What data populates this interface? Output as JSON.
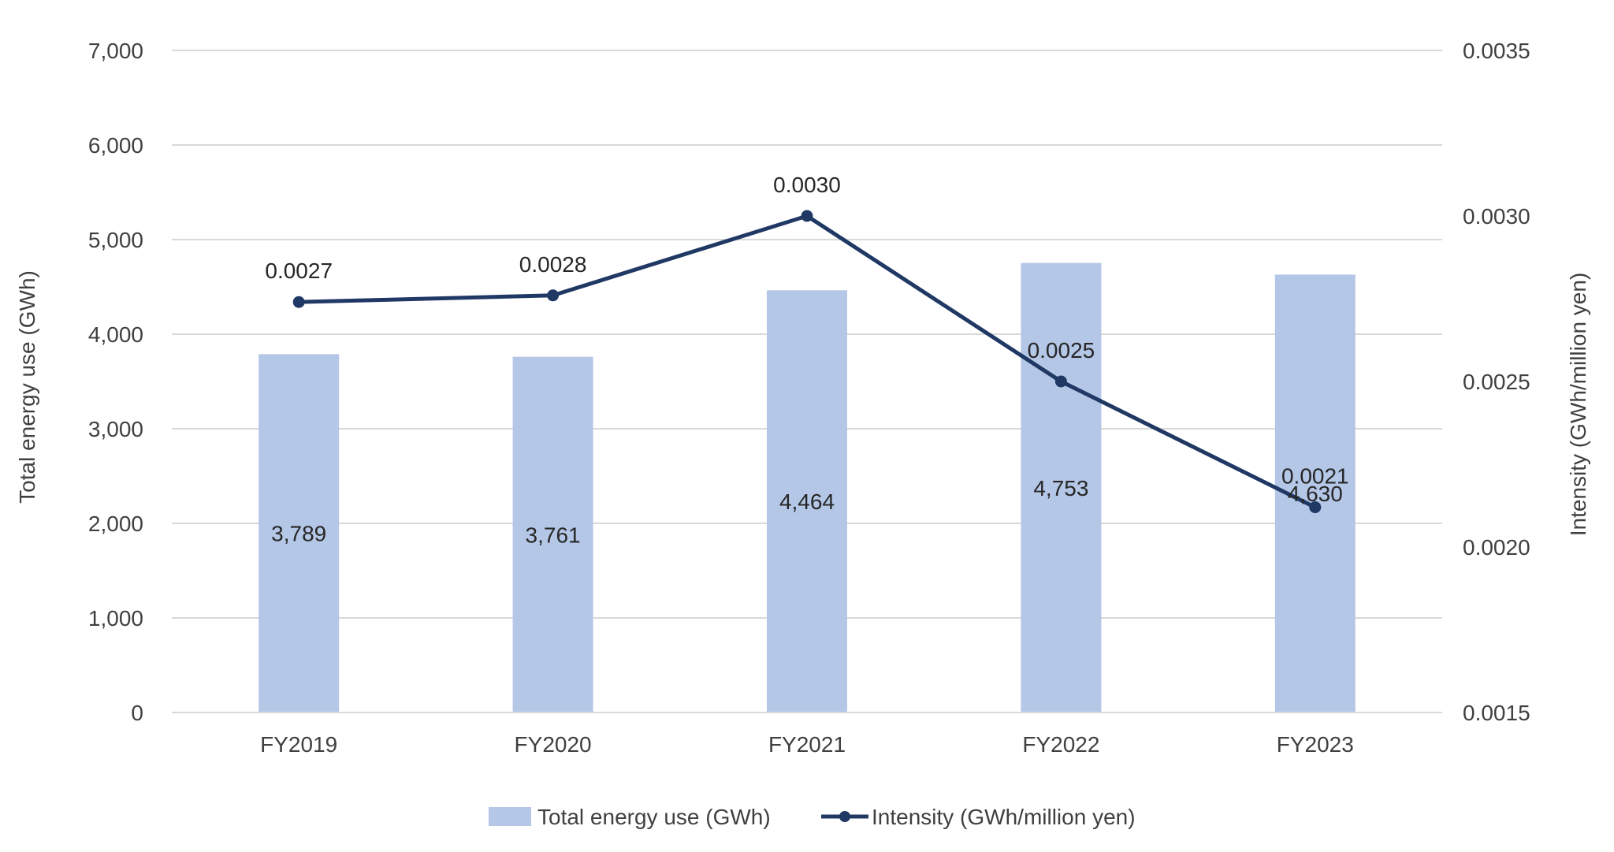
{
  "chart_data": {
    "type": "bar",
    "categories": [
      "FY2019",
      "FY2020",
      "FY2021",
      "FY2022",
      "FY2023"
    ],
    "series": [
      {
        "name": "Total energy use (GWh)",
        "type": "bar",
        "axis": "left",
        "values": [
          3789,
          3761,
          4464,
          4753,
          4630
        ],
        "labels": [
          "3,789",
          "3,761",
          "4,464",
          "4,753",
          "4,630"
        ]
      },
      {
        "name": "Intensity (GWh/million yen)",
        "type": "line",
        "axis": "right",
        "values": [
          0.00274,
          0.00276,
          0.003,
          0.0025,
          0.00212
        ],
        "labels": [
          "0.0027",
          "0.0028",
          "0.0030",
          "0.0025",
          "0.0021"
        ]
      }
    ],
    "ylabel": "Total energy use (GWh)",
    "y2label": "Intensity (GWh/million yen)",
    "ylim": [
      0,
      7000
    ],
    "y2lim": [
      0.0015,
      0.0035
    ],
    "yticks": [
      "0",
      "1,000",
      "2,000",
      "3,000",
      "4,000",
      "5,000",
      "6,000",
      "7,000"
    ],
    "y2ticks": [
      "0.0015",
      "0.0020",
      "0.0025",
      "0.0030",
      "0.0035"
    ],
    "grid": true,
    "legend": "bottom",
    "colors": {
      "bar": "#b4c7e7",
      "line": "#203864",
      "grid": "#d9d9d9",
      "text": "#404040"
    }
  }
}
